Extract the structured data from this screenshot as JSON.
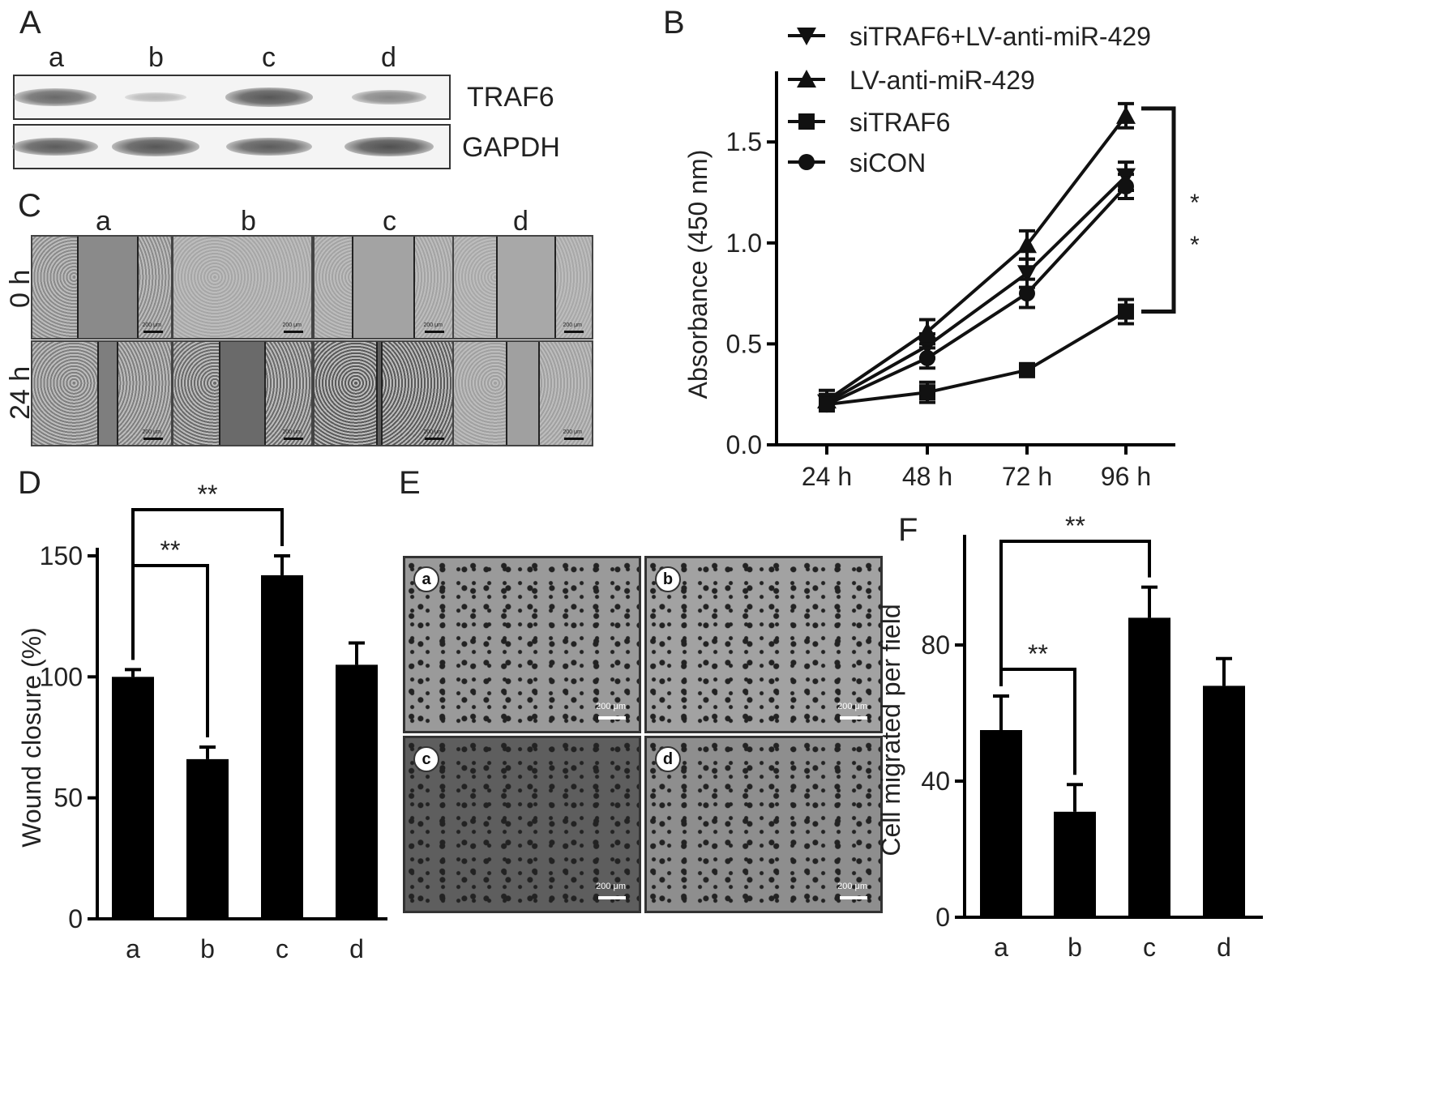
{
  "panel_letters": {
    "A": "A",
    "B": "B",
    "C": "C",
    "D": "D",
    "E": "E",
    "F": "F"
  },
  "blot": {
    "lanes": [
      "a",
      "b",
      "c",
      "d"
    ],
    "rows": [
      {
        "label": "TRAF6",
        "intensities": [
          0.8,
          0.15,
          0.95,
          0.55
        ]
      },
      {
        "label": "GAPDH",
        "intensities": [
          0.9,
          0.95,
          0.9,
          1.0
        ]
      }
    ]
  },
  "wound": {
    "columns": [
      "a",
      "b",
      "c",
      "d"
    ],
    "rows": [
      "0 h",
      "24 h"
    ],
    "scale_text": "200 μm",
    "tones": [
      [
        "#8a8a8a",
        "#a6a6a6",
        "#a3a3a3",
        "#a8a8a8"
      ],
      [
        "#7e7e7e",
        "#6a6a6a",
        "#5a5a5a",
        "#a0a0a0"
      ]
    ]
  },
  "transwell": {
    "tags": [
      "a",
      "b",
      "c",
      "d"
    ],
    "scale_text": "200 μm",
    "tones": [
      "#9a9a9a",
      "#a2a2a2",
      "#5e5e5e",
      "#8e8e8e"
    ]
  },
  "chart_data": [
    {
      "type": "line",
      "panel": "B",
      "ylabel": "Absorbance (450 nm)",
      "categories": [
        "24 h",
        "48 h",
        "72 h",
        "96 h"
      ],
      "ylim": [
        0,
        1.85
      ],
      "yticks": [
        0.0,
        0.5,
        1.0,
        1.5
      ],
      "ytick_labels": [
        "0.0",
        "0.5",
        "1.0",
        "1.5"
      ],
      "series": [
        {
          "name": "siTRAF6+LV-anti-miR-429",
          "marker": "triangle-down",
          "values": [
            0.21,
            0.49,
            0.85,
            1.33
          ],
          "errors": [
            0.04,
            0.06,
            0.07,
            0.07
          ]
        },
        {
          "name": "LV-anti-miR-429",
          "marker": "triangle-up",
          "values": [
            0.22,
            0.56,
            0.99,
            1.63
          ],
          "errors": [
            0.05,
            0.06,
            0.07,
            0.06
          ]
        },
        {
          "name": "siTRAF6",
          "marker": "square",
          "values": [
            0.2,
            0.26,
            0.37,
            0.66
          ],
          "errors": [
            0.03,
            0.05,
            0.03,
            0.06
          ]
        },
        {
          "name": "siCON",
          "marker": "circle",
          "values": [
            0.2,
            0.43,
            0.75,
            1.28
          ],
          "errors": [
            0.03,
            0.05,
            0.07,
            0.06
          ]
        }
      ],
      "significance": "**"
    },
    {
      "type": "bar",
      "panel": "D",
      "ylabel": "Wound closure (%)",
      "categories": [
        "a",
        "b",
        "c",
        "d"
      ],
      "values": [
        100,
        66,
        142,
        105
      ],
      "errors": [
        3,
        5,
        8,
        9
      ],
      "ylim": [
        0,
        150
      ],
      "yticks": [
        0,
        50,
        100,
        150
      ],
      "comparisons": [
        {
          "from": "a",
          "to": "c",
          "label": "**"
        },
        {
          "from": "a",
          "to": "b",
          "label": "**"
        }
      ]
    },
    {
      "type": "bar",
      "panel": "F",
      "ylabel": "Cell migrated per field",
      "categories": [
        "a",
        "b",
        "c",
        "d"
      ],
      "values": [
        55,
        31,
        88,
        68
      ],
      "errors": [
        10,
        8,
        9,
        8
      ],
      "ylim": [
        0,
        110
      ],
      "yticks": [
        0,
        40,
        80
      ],
      "comparisons": [
        {
          "from": "a",
          "to": "c",
          "label": "**"
        },
        {
          "from": "a",
          "to": "b",
          "label": "**"
        }
      ]
    }
  ]
}
